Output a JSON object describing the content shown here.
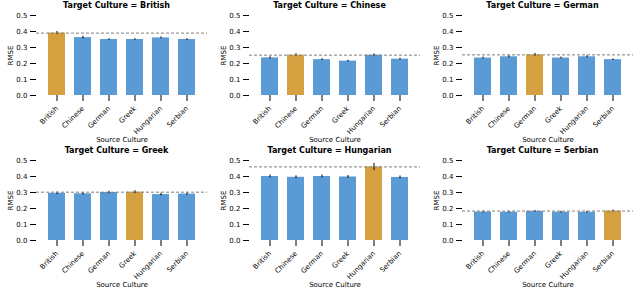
{
  "chart_data": [
    {
      "type": "bar",
      "title": "Target Culture = British",
      "categories": [
        "British",
        "Chinese",
        "German",
        "Greek",
        "Hungarian",
        "Serbian"
      ],
      "values": [
        0.39,
        0.362,
        0.35,
        0.35,
        0.36,
        0.35
      ],
      "errors": [
        0.01,
        0.008,
        0.005,
        0.005,
        0.006,
        0.005
      ],
      "colors": [
        "#D4A040",
        "#5B9BD5",
        "#5B9BD5",
        "#5B9BD5",
        "#5B9BD5",
        "#5B9BD5"
      ],
      "hline": 0.39,
      "xlabel": "Source Culture",
      "ylabel": "RMSE",
      "ylim": [
        0.0,
        0.5
      ],
      "yticks": [
        {
          "value": 0.0,
          "label": "0.0"
        },
        0.1,
        0.2,
        0.3,
        0.4,
        0.5
      ],
      "grid": false
    },
    {
      "type": "bar",
      "title": "Target Culture = Chinese",
      "categories": [
        "British",
        "Chinese",
        "German",
        "Greek",
        "Hungarian",
        "Serbian"
      ],
      "values": [
        0.235,
        0.252,
        0.224,
        0.215,
        0.252,
        0.227
      ],
      "errors": [
        0.007,
        0.009,
        0.006,
        0.006,
        0.008,
        0.006
      ],
      "colors": [
        "#5B9BD5",
        "#D4A040",
        "#5B9BD5",
        "#5B9BD5",
        "#5B9BD5",
        "#5B9BD5"
      ],
      "hline": 0.252,
      "xlabel": "Source Culture",
      "ylabel": "RMSE",
      "ylim": [
        0.0,
        0.5
      ],
      "yticks": [
        {
          "value": 0.0,
          "label": "0.0"
        },
        0.1,
        0.2,
        0.3,
        0.4,
        0.5
      ],
      "grid": false
    },
    {
      "type": "bar",
      "title": "Target Culture = German",
      "categories": [
        "British",
        "Chinese",
        "German",
        "Greek",
        "Hungarian",
        "Serbian"
      ],
      "values": [
        0.234,
        0.242,
        0.254,
        0.234,
        0.242,
        0.224
      ],
      "errors": [
        0.006,
        0.007,
        0.009,
        0.006,
        0.007,
        0.005
      ],
      "colors": [
        "#5B9BD5",
        "#5B9BD5",
        "#D4A040",
        "#5B9BD5",
        "#5B9BD5",
        "#5B9BD5"
      ],
      "hline": 0.254,
      "xlabel": "Source Culture",
      "ylabel": "RMSE",
      "ylim": [
        0.0,
        0.5
      ],
      "yticks": [
        {
          "value": 0.0,
          "label": "0.0"
        },
        0.1,
        0.2,
        0.3,
        0.4,
        0.5
      ],
      "grid": false
    },
    {
      "type": "bar",
      "title": "Target Culture = Greek",
      "categories": [
        "British",
        "Chinese",
        "German",
        "Greek",
        "Hungarian",
        "Serbian"
      ],
      "values": [
        0.295,
        0.292,
        0.3,
        0.302,
        0.287,
        0.29
      ],
      "errors": [
        0.008,
        0.008,
        0.008,
        0.009,
        0.008,
        0.007
      ],
      "colors": [
        "#5B9BD5",
        "#5B9BD5",
        "#5B9BD5",
        "#D4A040",
        "#5B9BD5",
        "#5B9BD5"
      ],
      "hline": 0.302,
      "xlabel": "Source Culture",
      "ylabel": "RMSE",
      "ylim": [
        0.0,
        0.5
      ],
      "yticks": [
        {
          "value": 0.0,
          "label": "0.0"
        },
        0.1,
        0.2,
        0.3,
        0.4,
        0.5
      ],
      "grid": false
    },
    {
      "type": "bar",
      "title": "Target Culture = Hungarian",
      "categories": [
        "British",
        "Chinese",
        "German",
        "Greek",
        "Hungarian",
        "Serbian"
      ],
      "values": [
        0.4,
        0.395,
        0.4,
        0.397,
        0.46,
        0.394
      ],
      "errors": [
        0.009,
        0.009,
        0.009,
        0.009,
        0.022,
        0.009
      ],
      "colors": [
        "#5B9BD5",
        "#5B9BD5",
        "#5B9BD5",
        "#5B9BD5",
        "#D4A040",
        "#5B9BD5"
      ],
      "hline": 0.46,
      "xlabel": "Source Culture",
      "ylabel": "RMSE",
      "ylim": [
        0.0,
        0.5
      ],
      "yticks": [
        {
          "value": 0.0,
          "label": "0.0"
        },
        0.1,
        0.2,
        0.3,
        0.4,
        0.5
      ],
      "grid": false
    },
    {
      "type": "bar",
      "title": "Target Culture = Serbian",
      "categories": [
        "British",
        "Chinese",
        "German",
        "Greek",
        "Hungarian",
        "Serbian"
      ],
      "values": [
        0.178,
        0.177,
        0.182,
        0.177,
        0.177,
        0.184
      ],
      "errors": [
        0.005,
        0.005,
        0.005,
        0.005,
        0.005,
        0.006
      ],
      "colors": [
        "#5B9BD5",
        "#5B9BD5",
        "#5B9BD5",
        "#5B9BD5",
        "#5B9BD5",
        "#D4A040"
      ],
      "hline": 0.184,
      "xlabel": "Source Culture",
      "ylabel": "RMSE",
      "ylim": [
        0.0,
        0.5
      ],
      "yticks": [
        {
          "value": 0.0,
          "label": "0.0"
        },
        0.1,
        0.2,
        0.3,
        0.4,
        0.5
      ],
      "grid": false
    }
  ]
}
